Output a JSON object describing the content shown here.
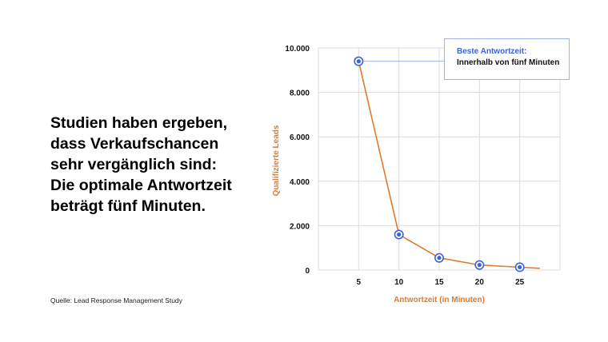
{
  "slide": {
    "headline_lines": [
      "Studien haben ergeben,",
      "dass Verkaufschancen",
      "sehr vergänglich sind:",
      "Die optimale Antwortzeit",
      "beträgt fünf Minuten."
    ],
    "source": "Quelle: Lead Response Management Study"
  },
  "chart_data": {
    "type": "line",
    "x": [
      5,
      10,
      15,
      20,
      25
    ],
    "y_tick_labels": [
      "0",
      "2.000",
      "4.000",
      "6.000",
      "8.000",
      "10.000"
    ],
    "y_ticks": [
      0,
      2000,
      4000,
      6000,
      8000,
      10000
    ],
    "x_tick_labels": [
      "5",
      "10",
      "15",
      "20",
      "25"
    ],
    "series": [
      {
        "values": [
          9400,
          1600,
          550,
          230,
          130
        ],
        "tail": {
          "x": 27.5,
          "y": 80
        }
      }
    ],
    "xlabel": "Antwortzeit (in Minuten)",
    "ylabel": "Qualifizierte Leads",
    "xlim": [
      0,
      30
    ],
    "ylim": [
      0,
      10000
    ],
    "grid": true,
    "line_color": "#e07b2c",
    "marker_color": "#3e63d6",
    "axis_label_color": "#e07b2c",
    "annotation": {
      "title": "Beste Antwortzeit:",
      "text": "Innerhalb von fünf Minuten",
      "points_to_x": 5,
      "title_color": "#3e63d6"
    }
  }
}
